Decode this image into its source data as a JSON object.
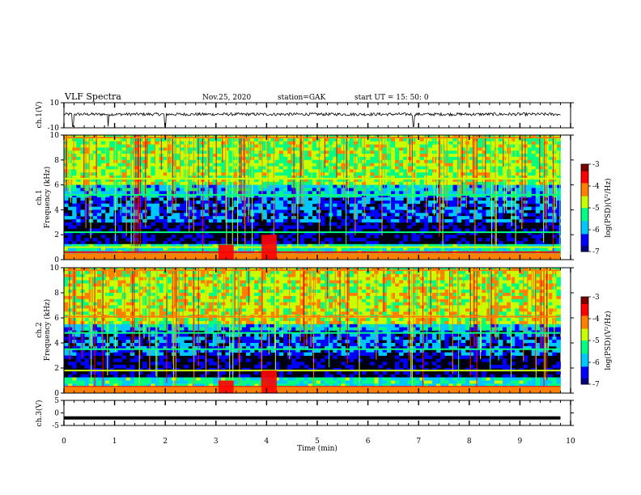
{
  "header": {
    "title": "VLF Spectra",
    "date": "Nov.25, 2020",
    "station": "station=GAK",
    "start_ut": "start  UT =   15: 50: 0"
  },
  "chart_data": [
    {
      "type": "line",
      "ylabel": "ch.1(V)",
      "ylim": [
        -10,
        10
      ],
      "yticks": [
        10,
        -10
      ],
      "xlim": [
        0,
        10
      ],
      "trace": {
        "baseline": 0.8,
        "spike_times_min": [
          0.18,
          0.87,
          2.0,
          6.9
        ]
      }
    },
    {
      "type": "heatmap",
      "ylabel": "ch.1 Frequency (kHz)",
      "ylim": [
        0,
        10
      ],
      "yticks": [
        0,
        2,
        4,
        6,
        8,
        10
      ],
      "xlim": [
        0,
        10
      ],
      "colorbar": {
        "label": "log(PSD)(V²/Hz)",
        "range": [
          -7,
          -3
        ],
        "ticks": [
          -3,
          -4,
          -5,
          -6,
          -7
        ]
      },
      "bands_khz": [
        {
          "f": 0.6,
          "level": -3.5
        },
        {
          "f": 1.0,
          "level": -4.5
        },
        {
          "f": 2.2,
          "level": -5.5
        },
        {
          "f": 5.2,
          "level": -5.2
        },
        {
          "f": 6.5,
          "level": -4.8
        },
        {
          "f": 9.8,
          "level": -4.0
        }
      ],
      "bursts": [
        {
          "t_min": 3.15,
          "f_max_khz": 1.2
        },
        {
          "t_min": 4.0,
          "f_max_khz": 2.0
        }
      ]
    },
    {
      "type": "heatmap",
      "ylabel": "ch.2 Frequency (kHz)",
      "ylim": [
        0,
        10
      ],
      "yticks": [
        0,
        2,
        4,
        6,
        8,
        10
      ],
      "xlim": [
        0,
        10
      ],
      "colorbar": {
        "label": "log(PSD)(V²/Hz)",
        "range": [
          -7,
          -3
        ],
        "ticks": [
          -3,
          -4,
          -5,
          -6,
          -7
        ]
      },
      "bands_khz": [
        {
          "f": 0.5,
          "level": -3.5
        },
        {
          "f": 1.8,
          "level": -4.6
        },
        {
          "f": 3.5,
          "level": -5.3
        },
        {
          "f": 4.8,
          "level": -5.0
        },
        {
          "f": 6.1,
          "level": -4.3
        },
        {
          "f": 9.8,
          "level": -4.0
        }
      ],
      "bursts": [
        {
          "t_min": 3.15,
          "f_max_khz": 1.0
        },
        {
          "t_min": 4.0,
          "f_max_khz": 1.8
        }
      ]
    },
    {
      "type": "line",
      "ylabel": "ch.3(V)",
      "ylim": [
        -5,
        5
      ],
      "yticks": [
        5,
        0,
        -5
      ],
      "xlim": [
        0,
        10
      ],
      "trace": {
        "constant": -2
      }
    }
  ],
  "x_axis": {
    "label": "Time  (min)",
    "ticks": [
      "0",
      "1",
      "2",
      "3",
      "4",
      "5",
      "6",
      "7",
      "8",
      "9",
      "10"
    ]
  },
  "colors": {
    "colormap": [
      "#00007f",
      "#0000ff",
      "#00c8ff",
      "#00ff80",
      "#c8ff00",
      "#ff8000",
      "#ff0000",
      "#7f0000"
    ],
    "background_low": "#000014"
  }
}
